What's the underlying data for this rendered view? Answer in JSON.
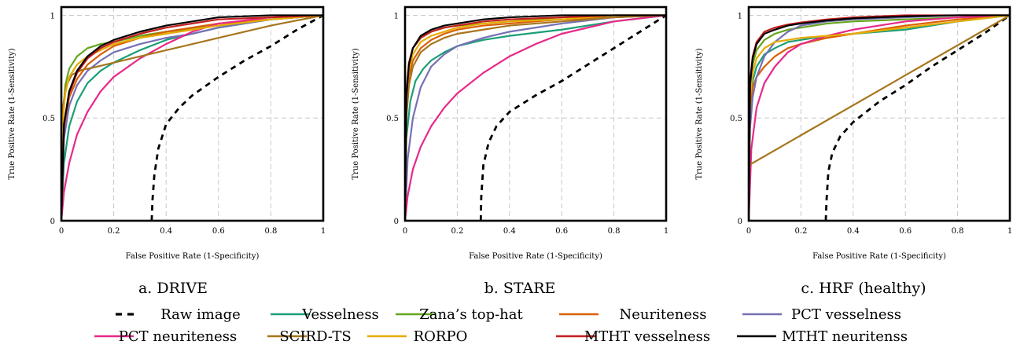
{
  "chart_data": [
    {
      "type": "line",
      "caption": "a. DRIVE",
      "xlabel": "False Positive Rate (1-Specificity)",
      "ylabel": "True Positive Rate (1-Sensitivity)",
      "xlim": [
        0,
        1
      ],
      "ylim": [
        0,
        1.04
      ],
      "xticks": [
        "0",
        "0.2",
        "0.4",
        "0.6",
        "0.8",
        "1"
      ],
      "yticks": [
        "0",
        "0.5",
        "1"
      ],
      "grid": true,
      "series": [
        {
          "name": "Raw image",
          "x": [
            0.345,
            0.348,
            0.355,
            0.37,
            0.4,
            0.45,
            0.5,
            0.6,
            0.7,
            0.8,
            0.9,
            1.0
          ],
          "y": [
            0.0,
            0.1,
            0.22,
            0.35,
            0.47,
            0.55,
            0.61,
            0.7,
            0.78,
            0.85,
            0.93,
            1.0
          ]
        },
        {
          "name": "Vesselness",
          "x": [
            0.0,
            0.01,
            0.03,
            0.06,
            0.1,
            0.15,
            0.2,
            0.3,
            0.4,
            0.6,
            0.8,
            1.0
          ],
          "y": [
            0.0,
            0.28,
            0.46,
            0.58,
            0.67,
            0.73,
            0.77,
            0.83,
            0.88,
            0.94,
            0.98,
            1.0
          ]
        },
        {
          "name": "Zana’s top-hat",
          "x": [
            0.0,
            0.005,
            0.015,
            0.03,
            0.06,
            0.1,
            0.15,
            0.2,
            0.3,
            0.4,
            0.6,
            0.8,
            1.0
          ],
          "y": [
            0.0,
            0.5,
            0.66,
            0.74,
            0.8,
            0.84,
            0.86,
            0.87,
            0.9,
            0.92,
            0.95,
            0.98,
            1.0
          ]
        },
        {
          "name": "Neuriteness",
          "x": [
            0.0,
            0.01,
            0.03,
            0.06,
            0.1,
            0.15,
            0.2,
            0.3,
            0.4,
            0.6,
            0.8,
            1.0
          ],
          "y": [
            0.0,
            0.45,
            0.6,
            0.69,
            0.76,
            0.81,
            0.85,
            0.89,
            0.92,
            0.96,
            0.98,
            1.0
          ]
        },
        {
          "name": "PCT vesselness",
          "x": [
            0.0,
            0.01,
            0.03,
            0.06,
            0.1,
            0.15,
            0.2,
            0.3,
            0.4,
            0.5,
            0.6,
            0.8,
            1.0
          ],
          "y": [
            0.0,
            0.4,
            0.56,
            0.66,
            0.73,
            0.78,
            0.82,
            0.86,
            0.89,
            0.91,
            0.94,
            0.98,
            1.0
          ]
        },
        {
          "name": "PCT neuriteness",
          "x": [
            0.0,
            0.01,
            0.03,
            0.06,
            0.1,
            0.15,
            0.2,
            0.3,
            0.4,
            0.5,
            0.6,
            0.8,
            1.0
          ],
          "y": [
            0.0,
            0.14,
            0.28,
            0.42,
            0.53,
            0.63,
            0.7,
            0.79,
            0.86,
            0.92,
            0.96,
            0.99,
            1.0
          ]
        },
        {
          "name": "SCIRD-TS",
          "x": [
            0.0,
            0.005,
            0.02,
            0.04,
            0.08,
            0.12,
            0.3,
            0.6,
            0.8,
            1.0
          ],
          "y": [
            0.0,
            0.55,
            0.66,
            0.71,
            0.735,
            0.745,
            0.8,
            0.89,
            0.95,
            1.0
          ]
        },
        {
          "name": "RORPO",
          "x": [
            0.0,
            0.005,
            0.015,
            0.03,
            0.06,
            0.1,
            0.15,
            0.2,
            0.3,
            0.4,
            0.6,
            0.8,
            1.0
          ],
          "y": [
            0.0,
            0.48,
            0.62,
            0.7,
            0.76,
            0.8,
            0.83,
            0.86,
            0.89,
            0.91,
            0.95,
            0.98,
            1.0
          ]
        },
        {
          "name": "MTHT vesselness",
          "x": [
            0.0,
            0.01,
            0.03,
            0.06,
            0.1,
            0.15,
            0.2,
            0.3,
            0.4,
            0.6,
            0.8,
            1.0
          ],
          "y": [
            0.0,
            0.46,
            0.62,
            0.72,
            0.79,
            0.84,
            0.87,
            0.91,
            0.94,
            0.98,
            0.99,
            1.0
          ]
        },
        {
          "name": "MTHT neuritenss",
          "x": [
            0.0,
            0.01,
            0.03,
            0.06,
            0.1,
            0.15,
            0.2,
            0.3,
            0.4,
            0.5,
            0.6,
            0.8,
            1.0
          ],
          "y": [
            0.0,
            0.47,
            0.63,
            0.73,
            0.8,
            0.85,
            0.88,
            0.92,
            0.95,
            0.97,
            0.99,
            1.0,
            1.0
          ]
        }
      ]
    },
    {
      "type": "line",
      "caption": "b. STARE",
      "xlabel": "False Positive Rate (1-Specificity)",
      "ylabel": "True Positive Rate (1-Sensitivity)",
      "xlim": [
        0,
        1
      ],
      "ylim": [
        0,
        1.04
      ],
      "xticks": [
        "0",
        "0.2",
        "0.4",
        "0.6",
        "0.8",
        "1"
      ],
      "yticks": [
        "0",
        "0.5",
        "1"
      ],
      "grid": true,
      "series": [
        {
          "name": "Raw image",
          "x": [
            0.29,
            0.292,
            0.3,
            0.32,
            0.35,
            0.4,
            0.5,
            0.6,
            0.7,
            0.8,
            0.9,
            1.0
          ],
          "y": [
            0.0,
            0.12,
            0.27,
            0.38,
            0.46,
            0.53,
            0.61,
            0.68,
            0.76,
            0.84,
            0.92,
            1.0
          ]
        },
        {
          "name": "Vesselness",
          "x": [
            0.0,
            0.005,
            0.02,
            0.04,
            0.07,
            0.1,
            0.15,
            0.2,
            0.3,
            0.4,
            0.6,
            0.8,
            1.0
          ],
          "y": [
            0.0,
            0.4,
            0.58,
            0.68,
            0.74,
            0.78,
            0.82,
            0.85,
            0.88,
            0.9,
            0.93,
            0.97,
            1.0
          ]
        },
        {
          "name": "Zana’s top-hat",
          "x": [
            0.0,
            0.005,
            0.015,
            0.03,
            0.06,
            0.1,
            0.15,
            0.2,
            0.3,
            0.4,
            0.6,
            0.8,
            1.0
          ],
          "y": [
            0.0,
            0.62,
            0.77,
            0.84,
            0.89,
            0.92,
            0.94,
            0.95,
            0.96,
            0.97,
            0.99,
            1.0,
            1.0
          ]
        },
        {
          "name": "Neuriteness",
          "x": [
            0.0,
            0.005,
            0.015,
            0.03,
            0.06,
            0.1,
            0.15,
            0.2,
            0.3,
            0.4,
            0.6,
            0.8,
            1.0
          ],
          "y": [
            0.0,
            0.55,
            0.7,
            0.78,
            0.84,
            0.88,
            0.91,
            0.93,
            0.95,
            0.96,
            0.98,
            0.99,
            1.0
          ]
        },
        {
          "name": "PCT vesselness",
          "x": [
            0.0,
            0.01,
            0.03,
            0.06,
            0.1,
            0.15,
            0.2,
            0.3,
            0.4,
            0.6,
            0.8,
            1.0
          ],
          "y": [
            0.0,
            0.3,
            0.5,
            0.65,
            0.75,
            0.81,
            0.85,
            0.89,
            0.92,
            0.96,
            0.99,
            1.0
          ]
        },
        {
          "name": "PCT neuriteness",
          "x": [
            0.0,
            0.01,
            0.03,
            0.06,
            0.1,
            0.15,
            0.2,
            0.3,
            0.4,
            0.5,
            0.6,
            0.8,
            1.0
          ],
          "y": [
            0.0,
            0.12,
            0.25,
            0.36,
            0.46,
            0.55,
            0.62,
            0.72,
            0.8,
            0.86,
            0.91,
            0.97,
            1.0
          ]
        },
        {
          "name": "SCIRD-TS",
          "x": [
            0.0,
            0.005,
            0.015,
            0.03,
            0.06,
            0.1,
            0.15,
            0.2,
            0.3,
            0.4,
            0.6,
            0.8,
            1.0
          ],
          "y": [
            0.0,
            0.5,
            0.66,
            0.75,
            0.82,
            0.86,
            0.89,
            0.91,
            0.93,
            0.95,
            0.97,
            0.99,
            1.0
          ]
        },
        {
          "name": "RORPO",
          "x": [
            0.0,
            0.005,
            0.015,
            0.03,
            0.06,
            0.1,
            0.15,
            0.2,
            0.3,
            0.4,
            0.6,
            0.8,
            1.0
          ],
          "y": [
            0.0,
            0.6,
            0.74,
            0.81,
            0.87,
            0.9,
            0.92,
            0.94,
            0.96,
            0.97,
            0.98,
            1.0,
            1.0
          ]
        },
        {
          "name": "MTHT vesselness",
          "x": [
            0.0,
            0.005,
            0.015,
            0.03,
            0.06,
            0.1,
            0.15,
            0.2,
            0.3,
            0.4,
            0.6,
            0.8,
            1.0
          ],
          "y": [
            0.0,
            0.63,
            0.77,
            0.84,
            0.89,
            0.92,
            0.94,
            0.95,
            0.97,
            0.98,
            0.99,
            1.0,
            1.0
          ]
        },
        {
          "name": "MTHT neuritenss",
          "x": [
            0.0,
            0.005,
            0.015,
            0.03,
            0.06,
            0.1,
            0.15,
            0.2,
            0.3,
            0.4,
            0.6,
            0.8,
            1.0
          ],
          "y": [
            0.0,
            0.6,
            0.76,
            0.84,
            0.9,
            0.93,
            0.95,
            0.96,
            0.98,
            0.99,
            1.0,
            1.0,
            1.0
          ]
        }
      ]
    },
    {
      "type": "line",
      "caption": "c. HRF (healthy)",
      "xlabel": "False Positive Rate (1-Specificity)",
      "ylabel": "True Positive Rate (1-Sensitivity)",
      "xlim": [
        0,
        1
      ],
      "ylim": [
        0,
        1.04
      ],
      "xticks": [
        "0",
        "0.2",
        "0.4",
        "0.6",
        "0.8",
        "1"
      ],
      "yticks": [
        "0",
        "0.5",
        "1"
      ],
      "grid": true,
      "series": [
        {
          "name": "Raw image",
          "x": [
            0.295,
            0.298,
            0.305,
            0.32,
            0.35,
            0.4,
            0.5,
            0.6,
            0.7,
            0.8,
            0.9,
            1.0
          ],
          "y": [
            0.0,
            0.1,
            0.24,
            0.33,
            0.41,
            0.48,
            0.58,
            0.66,
            0.75,
            0.83,
            0.91,
            1.0
          ]
        },
        {
          "name": "Vesselness",
          "x": [
            0.0,
            0.005,
            0.015,
            0.03,
            0.06,
            0.1,
            0.15,
            0.2,
            0.3,
            0.4,
            0.6,
            0.8,
            1.0
          ],
          "y": [
            0.0,
            0.55,
            0.68,
            0.75,
            0.81,
            0.84,
            0.87,
            0.88,
            0.9,
            0.91,
            0.93,
            0.97,
            1.0
          ]
        },
        {
          "name": "Zana’s top-hat",
          "x": [
            0.0,
            0.005,
            0.015,
            0.03,
            0.06,
            0.1,
            0.15,
            0.2,
            0.3,
            0.4,
            0.6,
            0.8,
            1.0
          ],
          "y": [
            0.0,
            0.62,
            0.76,
            0.83,
            0.88,
            0.91,
            0.93,
            0.94,
            0.96,
            0.97,
            0.98,
            0.99,
            1.0
          ]
        },
        {
          "name": "Neuriteness",
          "x": [
            0.0,
            0.005,
            0.015,
            0.03,
            0.06,
            0.1,
            0.15,
            0.2,
            0.3,
            0.4,
            0.6,
            0.8,
            1.0
          ],
          "y": [
            0.0,
            0.55,
            0.65,
            0.7,
            0.75,
            0.8,
            0.84,
            0.86,
            0.89,
            0.91,
            0.95,
            0.98,
            1.0
          ]
        },
        {
          "name": "PCT vesselness",
          "x": [
            0.0,
            0.005,
            0.015,
            0.03,
            0.06,
            0.1,
            0.15,
            0.2,
            0.3,
            0.4,
            0.6,
            0.8,
            1.0
          ],
          "y": [
            0.0,
            0.45,
            0.6,
            0.7,
            0.8,
            0.87,
            0.92,
            0.95,
            0.97,
            0.98,
            0.99,
            1.0,
            1.0
          ]
        },
        {
          "name": "PCT neuriteness",
          "x": [
            0.0,
            0.01,
            0.03,
            0.06,
            0.1,
            0.15,
            0.2,
            0.3,
            0.4,
            0.6,
            0.8,
            1.0
          ],
          "y": [
            0.0,
            0.35,
            0.55,
            0.67,
            0.75,
            0.82,
            0.86,
            0.9,
            0.93,
            0.97,
            0.99,
            1.0
          ]
        },
        {
          "name": "SCIRD-TS",
          "x": [
            0.0,
            1.0
          ],
          "y": [
            0.27,
            1.0
          ]
        },
        {
          "name": "RORPO",
          "x": [
            0.0,
            0.005,
            0.015,
            0.03,
            0.06,
            0.1,
            0.15,
            0.2,
            0.3,
            0.4,
            0.6,
            0.8,
            1.0
          ],
          "y": [
            0.0,
            0.6,
            0.72,
            0.79,
            0.84,
            0.87,
            0.88,
            0.89,
            0.9,
            0.91,
            0.94,
            0.97,
            1.0
          ]
        },
        {
          "name": "MTHT vesselness",
          "x": [
            0.0,
            0.005,
            0.015,
            0.03,
            0.06,
            0.1,
            0.15,
            0.2,
            0.3,
            0.4,
            0.6,
            0.8,
            1.0
          ],
          "y": [
            0.0,
            0.68,
            0.8,
            0.87,
            0.92,
            0.94,
            0.955,
            0.965,
            0.98,
            0.99,
            1.0,
            1.0,
            1.0
          ]
        },
        {
          "name": "MTHT neuritenss",
          "x": [
            0.0,
            0.005,
            0.015,
            0.03,
            0.06,
            0.1,
            0.15,
            0.2,
            0.3,
            0.4,
            0.6,
            0.8,
            1.0
          ],
          "y": [
            0.0,
            0.66,
            0.79,
            0.86,
            0.91,
            0.93,
            0.95,
            0.96,
            0.975,
            0.985,
            0.995,
            1.0,
            1.0
          ]
        }
      ]
    }
  ],
  "legend": {
    "placement": "bottom",
    "entries": [
      {
        "name": "Raw image",
        "color": "#000000",
        "dashed": true
      },
      {
        "name": "Vesselness",
        "color": "#1b9e77",
        "dashed": false
      },
      {
        "name": "Zana’s top-hat",
        "color": "#66a61e",
        "dashed": false
      },
      {
        "name": "Neuriteness",
        "color": "#d95f02",
        "dashed": false
      },
      {
        "name": "PCT vesselness",
        "color": "#7570b3",
        "dashed": false
      },
      {
        "name": "PCT neuriteness",
        "color": "#e7298a",
        "dashed": false
      },
      {
        "name": "SCIRD-TS",
        "color": "#a6761d",
        "dashed": false
      },
      {
        "name": "RORPO",
        "color": "#e6ab02",
        "dashed": false
      },
      {
        "name": "MTHT vesselness",
        "color": "#c41e1e",
        "dashed": false
      },
      {
        "name": "MTHT neuritenss",
        "color": "#000000",
        "dashed": false
      }
    ]
  }
}
